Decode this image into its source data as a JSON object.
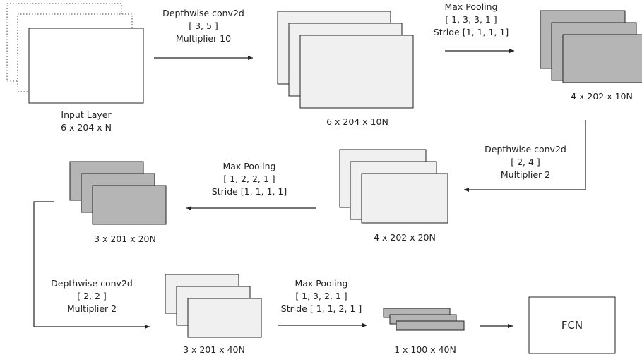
{
  "stages": {
    "input": {
      "name": "Input Layer",
      "shape": "6 x 204 x N"
    },
    "s1": {
      "shape": "6 x 204 x 10N"
    },
    "s2": {
      "shape": "4 x 202 x 10N"
    },
    "s3": {
      "shape": "4 x 202 x 20N"
    },
    "s4": {
      "shape": "3 x 201 x 20N"
    },
    "s5": {
      "shape": "3 x 201 x 40N"
    },
    "s6": {
      "shape": "1 x 100 x 40N"
    },
    "fcn": {
      "label": "FCN"
    }
  },
  "ops": {
    "op1": {
      "lines": [
        "Depthwise conv2d",
        "[ 3, 5 ]",
        "Multiplier 10"
      ]
    },
    "op2": {
      "lines": [
        "Max Pooling",
        "[ 1, 3, 3, 1 ]",
        "Stride [1, 1, 1, 1]"
      ]
    },
    "op3": {
      "lines": [
        "Depthwise conv2d",
        "[ 2, 4 ]",
        "Multiplier 2"
      ]
    },
    "op4": {
      "lines": [
        "Max Pooling",
        "[ 1, 2, 2, 1 ]",
        "Stride [1, 1, 1, 1]"
      ]
    },
    "op5": {
      "lines": [
        "Depthwise conv2d",
        "[ 2, 2 ]",
        "Multiplier 2"
      ]
    },
    "op6": {
      "lines": [
        "Max Pooling",
        "[ 1, 3, 2, 1 ]",
        "Stride [ 1, 1, 2, 1 ]"
      ]
    }
  },
  "colors": {
    "light_fill": "#f0f0f0",
    "dark_fill": "#b5b5b5",
    "white_fill": "#ffffff",
    "stroke": "#222222"
  }
}
